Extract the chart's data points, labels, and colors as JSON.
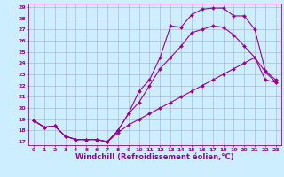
{
  "xlabel": "Windchill (Refroidissement éolien,°C)",
  "bg_color": "#cceeff",
  "line_color": "#990099",
  "grid_color": "#aaaacc",
  "xlim": [
    -0.5,
    23.5
  ],
  "ylim": [
    16.7,
    29.3
  ],
  "xticks": [
    0,
    1,
    2,
    3,
    4,
    5,
    6,
    7,
    8,
    9,
    10,
    11,
    12,
    13,
    14,
    15,
    16,
    17,
    18,
    19,
    20,
    21,
    22,
    23
  ],
  "yticks": [
    17,
    18,
    19,
    20,
    21,
    22,
    23,
    24,
    25,
    26,
    27,
    28,
    29
  ],
  "line1_x": [
    0,
    1,
    2,
    3,
    4,
    5,
    6,
    7,
    8,
    9,
    10,
    11,
    12,
    13,
    14,
    15,
    16,
    17,
    18,
    19,
    20,
    21,
    22,
    23
  ],
  "line1_y": [
    18.9,
    18.3,
    18.4,
    17.5,
    17.2,
    17.2,
    17.2,
    17.0,
    18.0,
    19.5,
    20.5,
    22.0,
    23.5,
    24.5,
    25.5,
    26.7,
    27.0,
    27.3,
    27.2,
    26.5,
    25.5,
    24.5,
    23.2,
    22.3
  ],
  "line2_x": [
    0,
    1,
    2,
    3,
    4,
    5,
    6,
    7,
    8,
    9,
    10,
    11,
    12,
    13,
    14,
    15,
    16,
    17,
    18,
    19,
    20,
    21,
    22,
    23
  ],
  "line2_y": [
    18.9,
    18.3,
    18.4,
    17.5,
    17.2,
    17.2,
    17.2,
    17.0,
    18.0,
    19.5,
    21.5,
    22.5,
    24.5,
    27.3,
    27.2,
    28.3,
    28.8,
    28.9,
    28.9,
    28.2,
    28.2,
    27.0,
    23.3,
    22.5
  ],
  "line3_x": [
    0,
    1,
    2,
    3,
    4,
    5,
    6,
    7,
    8,
    9,
    10,
    11,
    12,
    13,
    14,
    15,
    16,
    17,
    18,
    19,
    20,
    21,
    22,
    23
  ],
  "line3_y": [
    18.9,
    18.3,
    18.4,
    17.5,
    17.2,
    17.2,
    17.2,
    17.0,
    17.8,
    18.5,
    19.0,
    19.5,
    20.0,
    20.5,
    21.0,
    21.5,
    22.0,
    22.5,
    23.0,
    23.5,
    24.0,
    24.5,
    22.5,
    22.3
  ],
  "marker": "D",
  "markersize": 2.0,
  "linewidth": 0.8,
  "tick_fontsize": 4.5,
  "label_fontsize": 6.0
}
